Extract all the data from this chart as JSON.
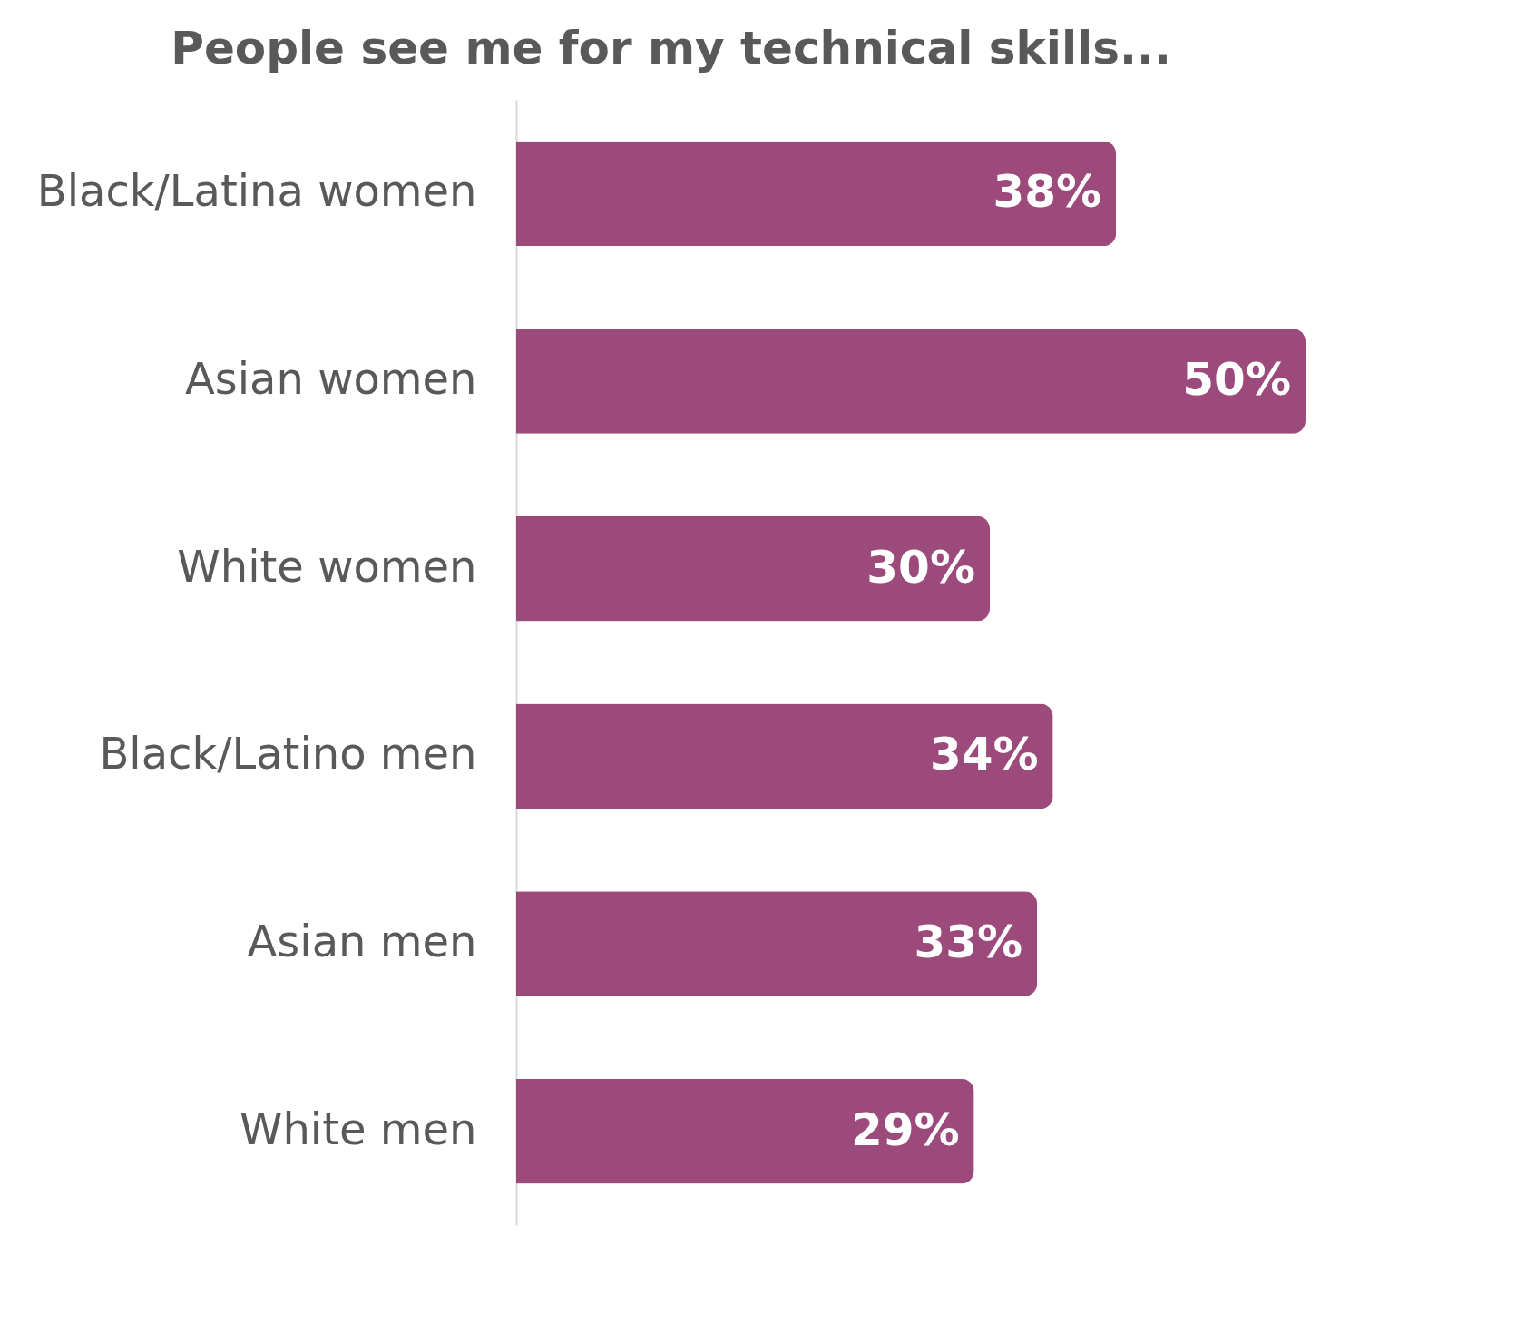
{
  "chart_data": {
    "type": "bar",
    "orientation": "horizontal",
    "title": "People see me for my technical skills...",
    "categories": [
      "Black/Latina women",
      "Asian women",
      "White women",
      "Black/Latino men",
      "Asian men",
      "White men"
    ],
    "values": [
      38,
      50,
      30,
      34,
      33,
      29
    ],
    "value_labels": [
      "38%",
      "50%",
      "30%",
      "34%",
      "33%",
      "29%"
    ],
    "color": "#9b4a7b",
    "tick_labels": "y"
  }
}
